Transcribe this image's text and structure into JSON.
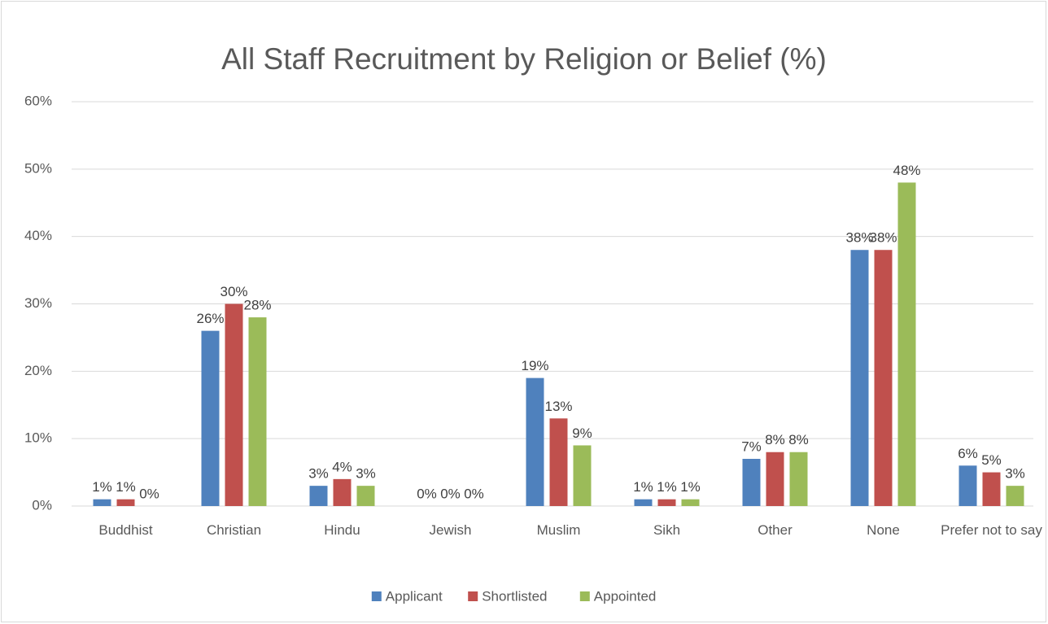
{
  "chart_data": {
    "type": "bar",
    "title": "All Staff Recruitment by Religion or Belief (%)",
    "categories": [
      "Buddhist",
      "Christian",
      "Hindu",
      "Jewish",
      "Muslim",
      "Sikh",
      "Other",
      "None",
      "Prefer not to say"
    ],
    "series": [
      {
        "name": "Applicant",
        "color": "#4f81bd",
        "values": [
          1,
          26,
          3,
          0,
          19,
          1,
          7,
          38,
          6
        ],
        "value_labels": [
          "1%",
          "26%",
          "3%",
          "0%",
          "19%",
          "1%",
          "7%",
          "38%",
          "6%"
        ]
      },
      {
        "name": "Shortlisted",
        "color": "#c0504d",
        "values": [
          1,
          30,
          4,
          0,
          13,
          1,
          8,
          38,
          5
        ],
        "value_labels": [
          "1%",
          "30%",
          "4%",
          "0%",
          "13%",
          "1%",
          "8%",
          "38%",
          "5%"
        ]
      },
      {
        "name": "Appointed",
        "color": "#9bbb59",
        "values": [
          0,
          28,
          3,
          0,
          9,
          1,
          8,
          48,
          3
        ],
        "value_labels": [
          "0%",
          "28%",
          "3%",
          "0%",
          "9%",
          "1%",
          "8%",
          "48%",
          "3%"
        ]
      }
    ],
    "ylim": [
      0,
      60
    ],
    "yticks": [
      {
        "value": 0,
        "label": "0%"
      },
      {
        "value": 10,
        "label": "10%"
      },
      {
        "value": 20,
        "label": "20%"
      },
      {
        "value": 30,
        "label": "30%"
      },
      {
        "value": 40,
        "label": "40%"
      },
      {
        "value": 50,
        "label": "50%"
      },
      {
        "value": 60,
        "label": "60%"
      }
    ],
    "grid": true,
    "legend": "bottom"
  }
}
